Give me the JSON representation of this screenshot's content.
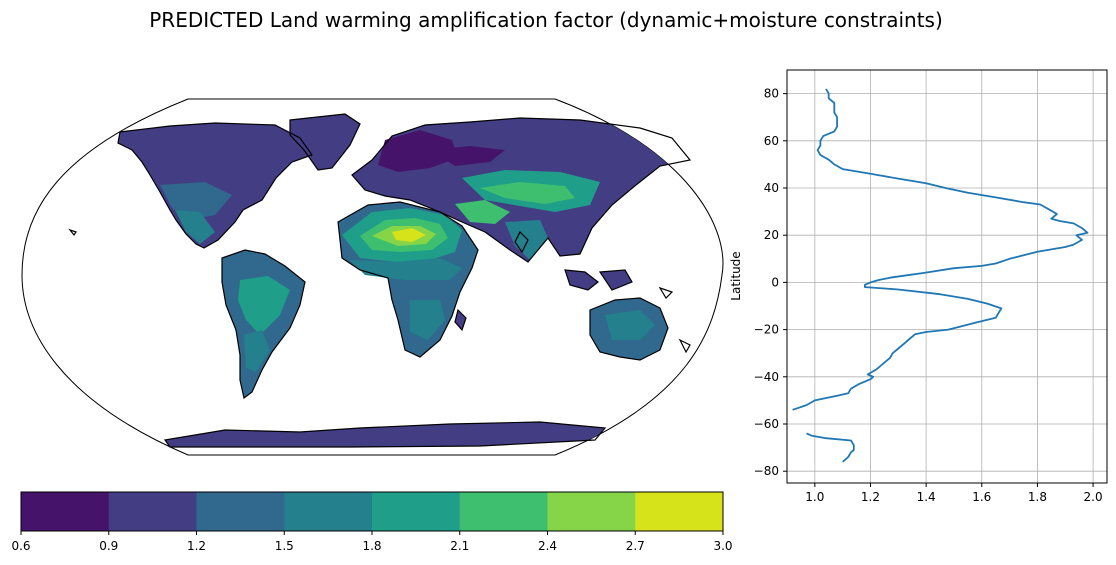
{
  "title": "PREDICTED Land warming amplification factor (dynamic+moisture constraints)",
  "colors": {
    "levels": [
      "#45146a",
      "#433e84",
      "#31688e",
      "#24808d",
      "#1f9e89",
      "#3dbf6f",
      "#86d549",
      "#d6e21a"
    ],
    "line": "#1f77b4",
    "grid": "#b0b0b0",
    "coast": "#000000"
  },
  "chart_data": [
    {
      "type": "heatmap",
      "name": "map",
      "colorbar": {
        "ticks": [
          "0.6",
          "0.9",
          "1.2",
          "1.5",
          "1.8",
          "2.1",
          "2.4",
          "2.7",
          "3.0"
        ],
        "vmin": 0.6,
        "vmax": 3.0,
        "orientation": "horizontal"
      }
    },
    {
      "type": "line",
      "name": "zonal-profile",
      "xlim": [
        0.9,
        2.05
      ],
      "ylim": [
        -85,
        90
      ],
      "xticks": [
        "1.0",
        "1.2",
        "1.4",
        "1.6",
        "1.8",
        "2.0"
      ],
      "yticks": [
        "80",
        "60",
        "40",
        "20",
        "0",
        "−20",
        "−40",
        "−60",
        "−80"
      ],
      "ytick_values": [
        80,
        60,
        40,
        20,
        0,
        -20,
        -40,
        -60,
        -80
      ],
      "xtick_values": [
        1.0,
        1.2,
        1.4,
        1.6,
        1.8,
        2.0
      ],
      "ylabel": "Latitude",
      "xlabel": "",
      "grid": true,
      "series": [
        {
          "points": [
            [
              1.04,
              82
            ],
            [
              1.05,
              80
            ],
            [
              1.05,
              78
            ],
            [
              1.07,
              76
            ],
            [
              1.07,
              72
            ],
            [
              1.08,
              70
            ],
            [
              1.08,
              66
            ],
            [
              1.07,
              64
            ],
            [
              1.03,
              62
            ],
            [
              1.02,
              60
            ],
            [
              1.02,
              58
            ],
            [
              1.01,
              56
            ],
            [
              1.02,
              54
            ],
            [
              1.05,
              52
            ],
            [
              1.07,
              50
            ],
            [
              1.1,
              48
            ],
            [
              1.2,
              46
            ],
            [
              1.3,
              44
            ],
            [
              1.4,
              42
            ],
            [
              1.47,
              40
            ],
            [
              1.55,
              38
            ],
            [
              1.65,
              36
            ],
            [
              1.75,
              34
            ],
            [
              1.81,
              33
            ],
            [
              1.84,
              31
            ],
            [
              1.87,
              29
            ],
            [
              1.85,
              27
            ],
            [
              1.88,
              26
            ],
            [
              1.93,
              25
            ],
            [
              1.96,
              23
            ],
            [
              1.98,
              21
            ],
            [
              1.94,
              20
            ],
            [
              1.96,
              18
            ],
            [
              1.93,
              16
            ],
            [
              1.9,
              15
            ],
            [
              1.8,
              13
            ],
            [
              1.7,
              10
            ],
            [
              1.65,
              8
            ],
            [
              1.6,
              7
            ],
            [
              1.5,
              6
            ],
            [
              1.39,
              4
            ],
            [
              1.33,
              3
            ],
            [
              1.27,
              2
            ],
            [
              1.23,
              1
            ],
            [
              1.2,
              0
            ],
            [
              1.18,
              -1
            ],
            [
              1.18,
              -2
            ],
            [
              1.3,
              -3
            ],
            [
              1.45,
              -5
            ],
            [
              1.55,
              -7
            ],
            [
              1.62,
              -9
            ],
            [
              1.67,
              -11
            ],
            [
              1.66,
              -13
            ],
            [
              1.65,
              -15
            ],
            [
              1.58,
              -17
            ],
            [
              1.48,
              -20
            ],
            [
              1.4,
              -21
            ],
            [
              1.36,
              -22
            ],
            [
              1.34,
              -24
            ],
            [
              1.32,
              -26
            ],
            [
              1.3,
              -28
            ],
            [
              1.28,
              -30
            ],
            [
              1.27,
              -32
            ],
            [
              1.25,
              -34
            ],
            [
              1.24,
              -35
            ],
            [
              1.22,
              -37
            ],
            [
              1.19,
              -39
            ],
            [
              1.21,
              -40
            ],
            [
              1.2,
              -41
            ],
            [
              1.16,
              -43
            ],
            [
              1.13,
              -45
            ],
            [
              1.12,
              -47
            ],
            [
              1.08,
              -48
            ],
            [
              1.0,
              -50
            ],
            [
              0.97,
              -52
            ],
            [
              0.92,
              -54
            ]
          ]
        },
        {
          "points": [
            [
              0.97,
              -64
            ],
            [
              0.99,
              -65
            ],
            [
              1.04,
              -66
            ],
            [
              1.13,
              -67
            ],
            [
              1.14,
              -69
            ],
            [
              1.14,
              -71
            ],
            [
              1.13,
              -72
            ],
            [
              1.12,
              -74
            ],
            [
              1.1,
              -76
            ]
          ]
        }
      ]
    }
  ]
}
